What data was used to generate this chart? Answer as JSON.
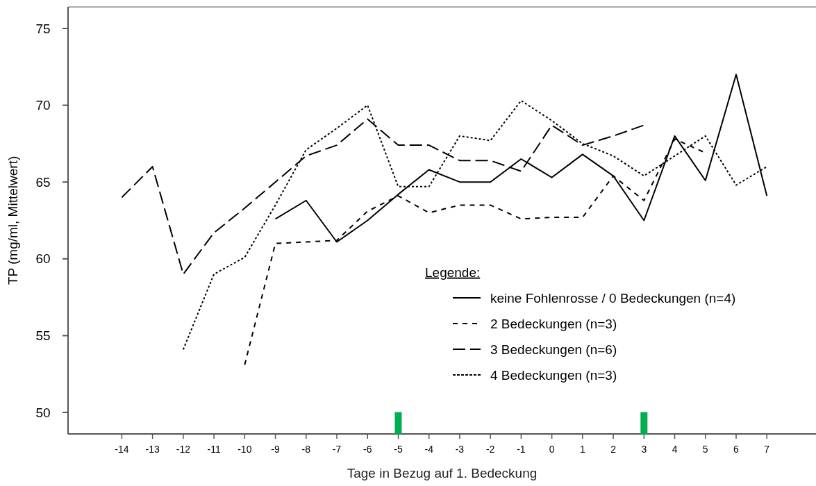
{
  "chart_data": {
    "type": "line",
    "xlabel": "Tage in Bezug auf 1. Bedeckung",
    "ylabel": "TP (mg/ml, Mittelwert)",
    "legend_title": "Legende:",
    "legend": "bottom right",
    "grid": false,
    "x": [
      -14,
      -13,
      -12,
      -11,
      -10,
      -9,
      -8,
      -7,
      -6,
      -5,
      -4,
      -3,
      -2,
      -1,
      0,
      1,
      2,
      3,
      4,
      5,
      6,
      7
    ],
    "xlim": [
      -15.75,
      8.6
    ],
    "xticks": [
      -14,
      -13,
      -12,
      -11,
      -10,
      -9,
      -8,
      -7,
      -6,
      -5,
      -4,
      -3,
      -2,
      -1,
      0,
      1,
      2,
      3,
      4,
      5,
      6,
      7
    ],
    "ylim": [
      48.6,
      76.4
    ],
    "yticks": [
      50,
      55,
      60,
      65,
      70,
      75
    ],
    "series": [
      {
        "type": "scatter",
        "marker": "square",
        "color": "#00b050",
        "x": [
          -5,
          3
        ],
        "values": [
          49.3,
          49.3
        ]
      },
      {
        "name": "keine Fohlenrosse / 0 Bedeckungen (n=4)",
        "color": "#000000",
        "line_style": "solid",
        "values": [
          null,
          null,
          null,
          null,
          null,
          62.6,
          63.8,
          61.1,
          62.5,
          64.2,
          65.8,
          65.0,
          65.0,
          66.5,
          65.3,
          66.8,
          65.4,
          62.5,
          68.0,
          65.1,
          72.0,
          64.1
        ]
      },
      {
        "name": "2 Bedeckungen (n=3)",
        "color": "#000000",
        "line_style": "dashed",
        "values": [
          null,
          null,
          null,
          null,
          53.1,
          61.0,
          61.1,
          61.2,
          63.1,
          64.1,
          63.0,
          63.5,
          63.5,
          62.6,
          62.7,
          62.7,
          65.4,
          63.8,
          67.8,
          66.9,
          null,
          null
        ]
      },
      {
        "name": "3 Bedeckungen (n=6)",
        "color": "#000000",
        "line_style": "dashed",
        "values": [
          64.0,
          66.0,
          59.0,
          61.7,
          63.3,
          65.0,
          66.7,
          67.4,
          69.1,
          67.4,
          67.4,
          66.4,
          66.4,
          65.7,
          68.7,
          67.4,
          68.0,
          68.7,
          null,
          null,
          null,
          null
        ]
      },
      {
        "name": "4 Bedeckungen (n=3)",
        "color": "#000000",
        "line_style": "dotted",
        "values": [
          null,
          null,
          54.1,
          59.0,
          60.1,
          63.5,
          67.1,
          68.5,
          70.0,
          64.7,
          64.7,
          68.0,
          67.7,
          70.3,
          69.0,
          67.5,
          66.7,
          65.4,
          66.7,
          68.0,
          64.8,
          66.0
        ]
      }
    ]
  }
}
